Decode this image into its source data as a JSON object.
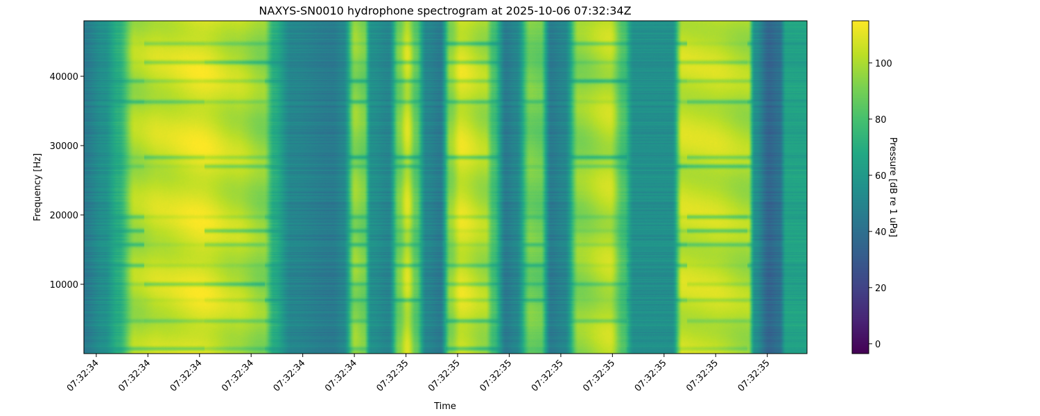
{
  "chart_data": {
    "type": "heatmap",
    "title": "NAXYS-SN0010 hydrophone spectrogram at 2025-10-06 07:32:34Z",
    "xlabel": "Time",
    "ylabel": "Frequency [Hz]",
    "colorbar_label": "Pressure [dB re 1 uPa]",
    "colormap": "viridis",
    "xlim": [
      "07:32:34.376",
      "07:32:35.777"
    ],
    "ylim": [
      0,
      48000
    ],
    "clim": [
      -3.5,
      115
    ],
    "x_ticks": [
      "07:32:34.4",
      "07:32:34.5",
      "07:32:34.6",
      "07:32:34.7",
      "07:32:34.8",
      "07:32:34.9",
      "07:32:35.0",
      "07:32:35.1",
      "07:32:35.2",
      "07:32:35.3",
      "07:32:35.4",
      "07:32:35.5",
      "07:32:35.6",
      "07:32:35.7"
    ],
    "x_tick_labels": [
      "07:32:34",
      "07:32:34",
      "07:32:34",
      "07:32:34",
      "07:32:34",
      "07:32:34",
      "07:32:35",
      "07:32:35",
      "07:32:35",
      "07:32:35",
      "07:32:35",
      "07:32:35",
      "07:32:35",
      "07:32:35"
    ],
    "y_ticks": [
      10000,
      20000,
      30000,
      40000
    ],
    "y_tick_labels": [
      "10000",
      "20000",
      "30000",
      "40000"
    ],
    "colorbar_ticks": [
      0,
      20,
      40,
      60,
      80,
      100
    ],
    "colorbar_tick_labels": [
      "0",
      "20",
      "40",
      "60",
      "80",
      "100"
    ],
    "time_profile_db": [
      [
        "07:32:34.376",
        45
      ],
      [
        "07:32:34.415",
        55
      ],
      [
        "07:32:34.442",
        70
      ],
      [
        "07:32:34.475",
        100
      ],
      [
        "07:32:34.522",
        105
      ],
      [
        "07:32:34.603",
        110
      ],
      [
        "07:32:34.670",
        103
      ],
      [
        "07:32:34.724",
        95
      ],
      [
        "07:32:34.744",
        70
      ],
      [
        "07:32:34.777",
        50
      ],
      [
        "07:32:34.858",
        45
      ],
      [
        "07:32:34.878",
        50
      ],
      [
        "07:32:34.901",
        95
      ],
      [
        "07:32:34.918",
        90
      ],
      [
        "07:32:34.932",
        55
      ],
      [
        "07:32:34.966",
        50
      ],
      [
        "07:32:34.986",
        90
      ],
      [
        "07:32:35.002",
        105
      ],
      [
        "07:32:35.019",
        85
      ],
      [
        "07:32:35.039",
        50
      ],
      [
        "07:32:35.066",
        45
      ],
      [
        "07:32:35.086",
        95
      ],
      [
        "07:32:35.106",
        108
      ],
      [
        "07:32:35.153",
        100
      ],
      [
        "07:32:35.169",
        80
      ],
      [
        "07:32:35.193",
        45
      ],
      [
        "07:32:35.213",
        50
      ],
      [
        "07:32:35.240",
        90
      ],
      [
        "07:32:35.260",
        88
      ],
      [
        "07:32:35.280",
        45
      ],
      [
        "07:32:35.307",
        50
      ],
      [
        "07:32:35.334",
        95
      ],
      [
        "07:32:35.394",
        103
      ],
      [
        "07:32:35.421",
        80
      ],
      [
        "07:32:35.441",
        55
      ],
      [
        "07:32:35.515",
        55
      ],
      [
        "07:32:35.535",
        105
      ],
      [
        "07:32:35.595",
        105
      ],
      [
        "07:32:35.662",
        100
      ],
      [
        "07:32:35.676",
        55
      ],
      [
        "07:32:35.703",
        35
      ],
      [
        "07:32:35.723",
        40
      ],
      [
        "07:32:35.736",
        65
      ],
      [
        "07:32:35.777",
        65
      ]
    ],
    "notch_frequencies_hz": [
      700,
      4700,
      7700,
      10000,
      12700,
      15700,
      17700,
      19700,
      27000,
      28300,
      36300,
      39300,
      42000,
      44700
    ],
    "grid": false
  }
}
